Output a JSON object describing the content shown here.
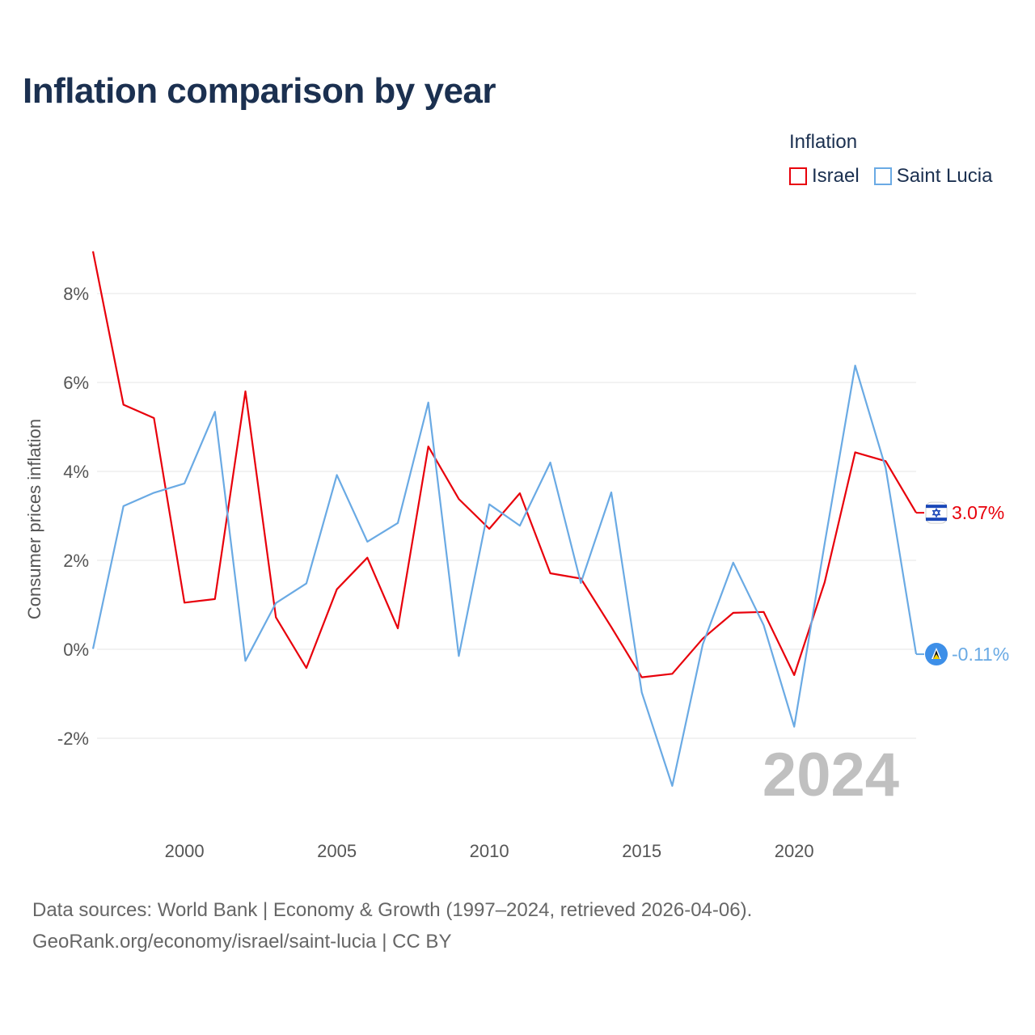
{
  "title": "Inflation comparison by year",
  "legend": {
    "title": "Inflation",
    "items": [
      {
        "label": "Israel",
        "color": "#e8000b"
      },
      {
        "label": "Saint Lucia",
        "color": "#6aaae4"
      }
    ]
  },
  "chart_data": {
    "type": "line",
    "title": "Inflation comparison by year",
    "xlabel": "",
    "ylabel": "Consumer prices inflation",
    "xlim": [
      1997,
      2024
    ],
    "ylim": [
      -3.8,
      9
    ],
    "yticks": [
      -2,
      0,
      2,
      4,
      6,
      8
    ],
    "ytick_labels": [
      "-2%",
      "0%",
      "2%",
      "4%",
      "6%",
      "8%"
    ],
    "xticks": [
      2000,
      2005,
      2010,
      2015,
      2020
    ],
    "xtick_labels": [
      "2000",
      "2005",
      "2010",
      "2015",
      "2020"
    ],
    "grid": true,
    "x": [
      1997,
      1998,
      1999,
      2000,
      2001,
      2002,
      2003,
      2004,
      2005,
      2006,
      2007,
      2008,
      2009,
      2010,
      2011,
      2012,
      2013,
      2014,
      2015,
      2016,
      2017,
      2018,
      2019,
      2020,
      2021,
      2022,
      2023,
      2024
    ],
    "series": [
      {
        "name": "Israel",
        "color": "#e8000b",
        "values": [
          8.95,
          5.5,
          5.2,
          1.05,
          1.13,
          5.8,
          0.72,
          -0.42,
          1.35,
          2.06,
          0.47,
          4.56,
          3.38,
          2.71,
          3.51,
          1.71,
          1.59,
          0.5,
          -0.63,
          -0.55,
          0.24,
          0.82,
          0.84,
          -0.58,
          1.51,
          4.43,
          4.23,
          3.07
        ],
        "end_label": "3.07%",
        "flag_icon": "israel-flag-icon"
      },
      {
        "name": "Saint Lucia",
        "color": "#6aaae4",
        "values": [
          0.01,
          3.22,
          3.52,
          3.73,
          5.34,
          -0.26,
          1.04,
          1.48,
          3.92,
          2.42,
          2.84,
          5.55,
          -0.15,
          3.26,
          2.78,
          4.2,
          1.49,
          3.53,
          -0.97,
          -3.07,
          0.11,
          1.95,
          0.54,
          -1.74,
          2.38,
          6.38,
          4.08,
          -0.11
        ],
        "end_label": "-0.11%",
        "flag_icon": "saint-lucia-flag-icon"
      }
    ],
    "year_watermark": "2024"
  },
  "footer": {
    "line1": "Data sources: World Bank | Economy & Growth (1997–2024, retrieved 2026-04-06).",
    "line2": "GeoRank.org/economy/israel/saint-lucia | CC BY"
  }
}
